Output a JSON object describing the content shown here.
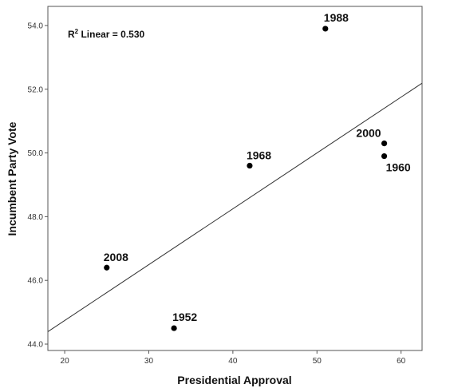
{
  "chart_data": {
    "type": "scatter",
    "title": "",
    "xlabel": "Presidential Approval",
    "ylabel": "Incumbent Party Vote",
    "xlim": [
      18,
      62.5
    ],
    "ylim": [
      43.8,
      54.6
    ],
    "xticks": [
      20,
      30,
      40,
      50,
      60
    ],
    "yticks": [
      44.0,
      46.0,
      48.0,
      50.0,
      52.0,
      54.0
    ],
    "xtick_labels": [
      "20",
      "30",
      "40",
      "50",
      "60"
    ],
    "ytick_labels": [
      "44.0",
      "46.0",
      "48.0",
      "50.0",
      "52.0",
      "54.0"
    ],
    "grid": false,
    "points": [
      {
        "label": "1988",
        "x": 51,
        "y": 53.9
      },
      {
        "label": "2000",
        "x": 58,
        "y": 50.3
      },
      {
        "label": "1960",
        "x": 58,
        "y": 49.9
      },
      {
        "label": "1968",
        "x": 42,
        "y": 49.6
      },
      {
        "label": "2008",
        "x": 25,
        "y": 46.4
      },
      {
        "label": "1952",
        "x": 33,
        "y": 44.5
      }
    ],
    "fit_line": {
      "type": "linear",
      "from": [
        18,
        44.39
      ],
      "to": [
        62.5,
        52.19
      ]
    },
    "annotation": {
      "prefix": "R",
      "sup": "2",
      "rest": " Linear = 0.530"
    },
    "colors": {
      "points": "#000000",
      "line": "#333333",
      "frame": "#555555"
    }
  }
}
